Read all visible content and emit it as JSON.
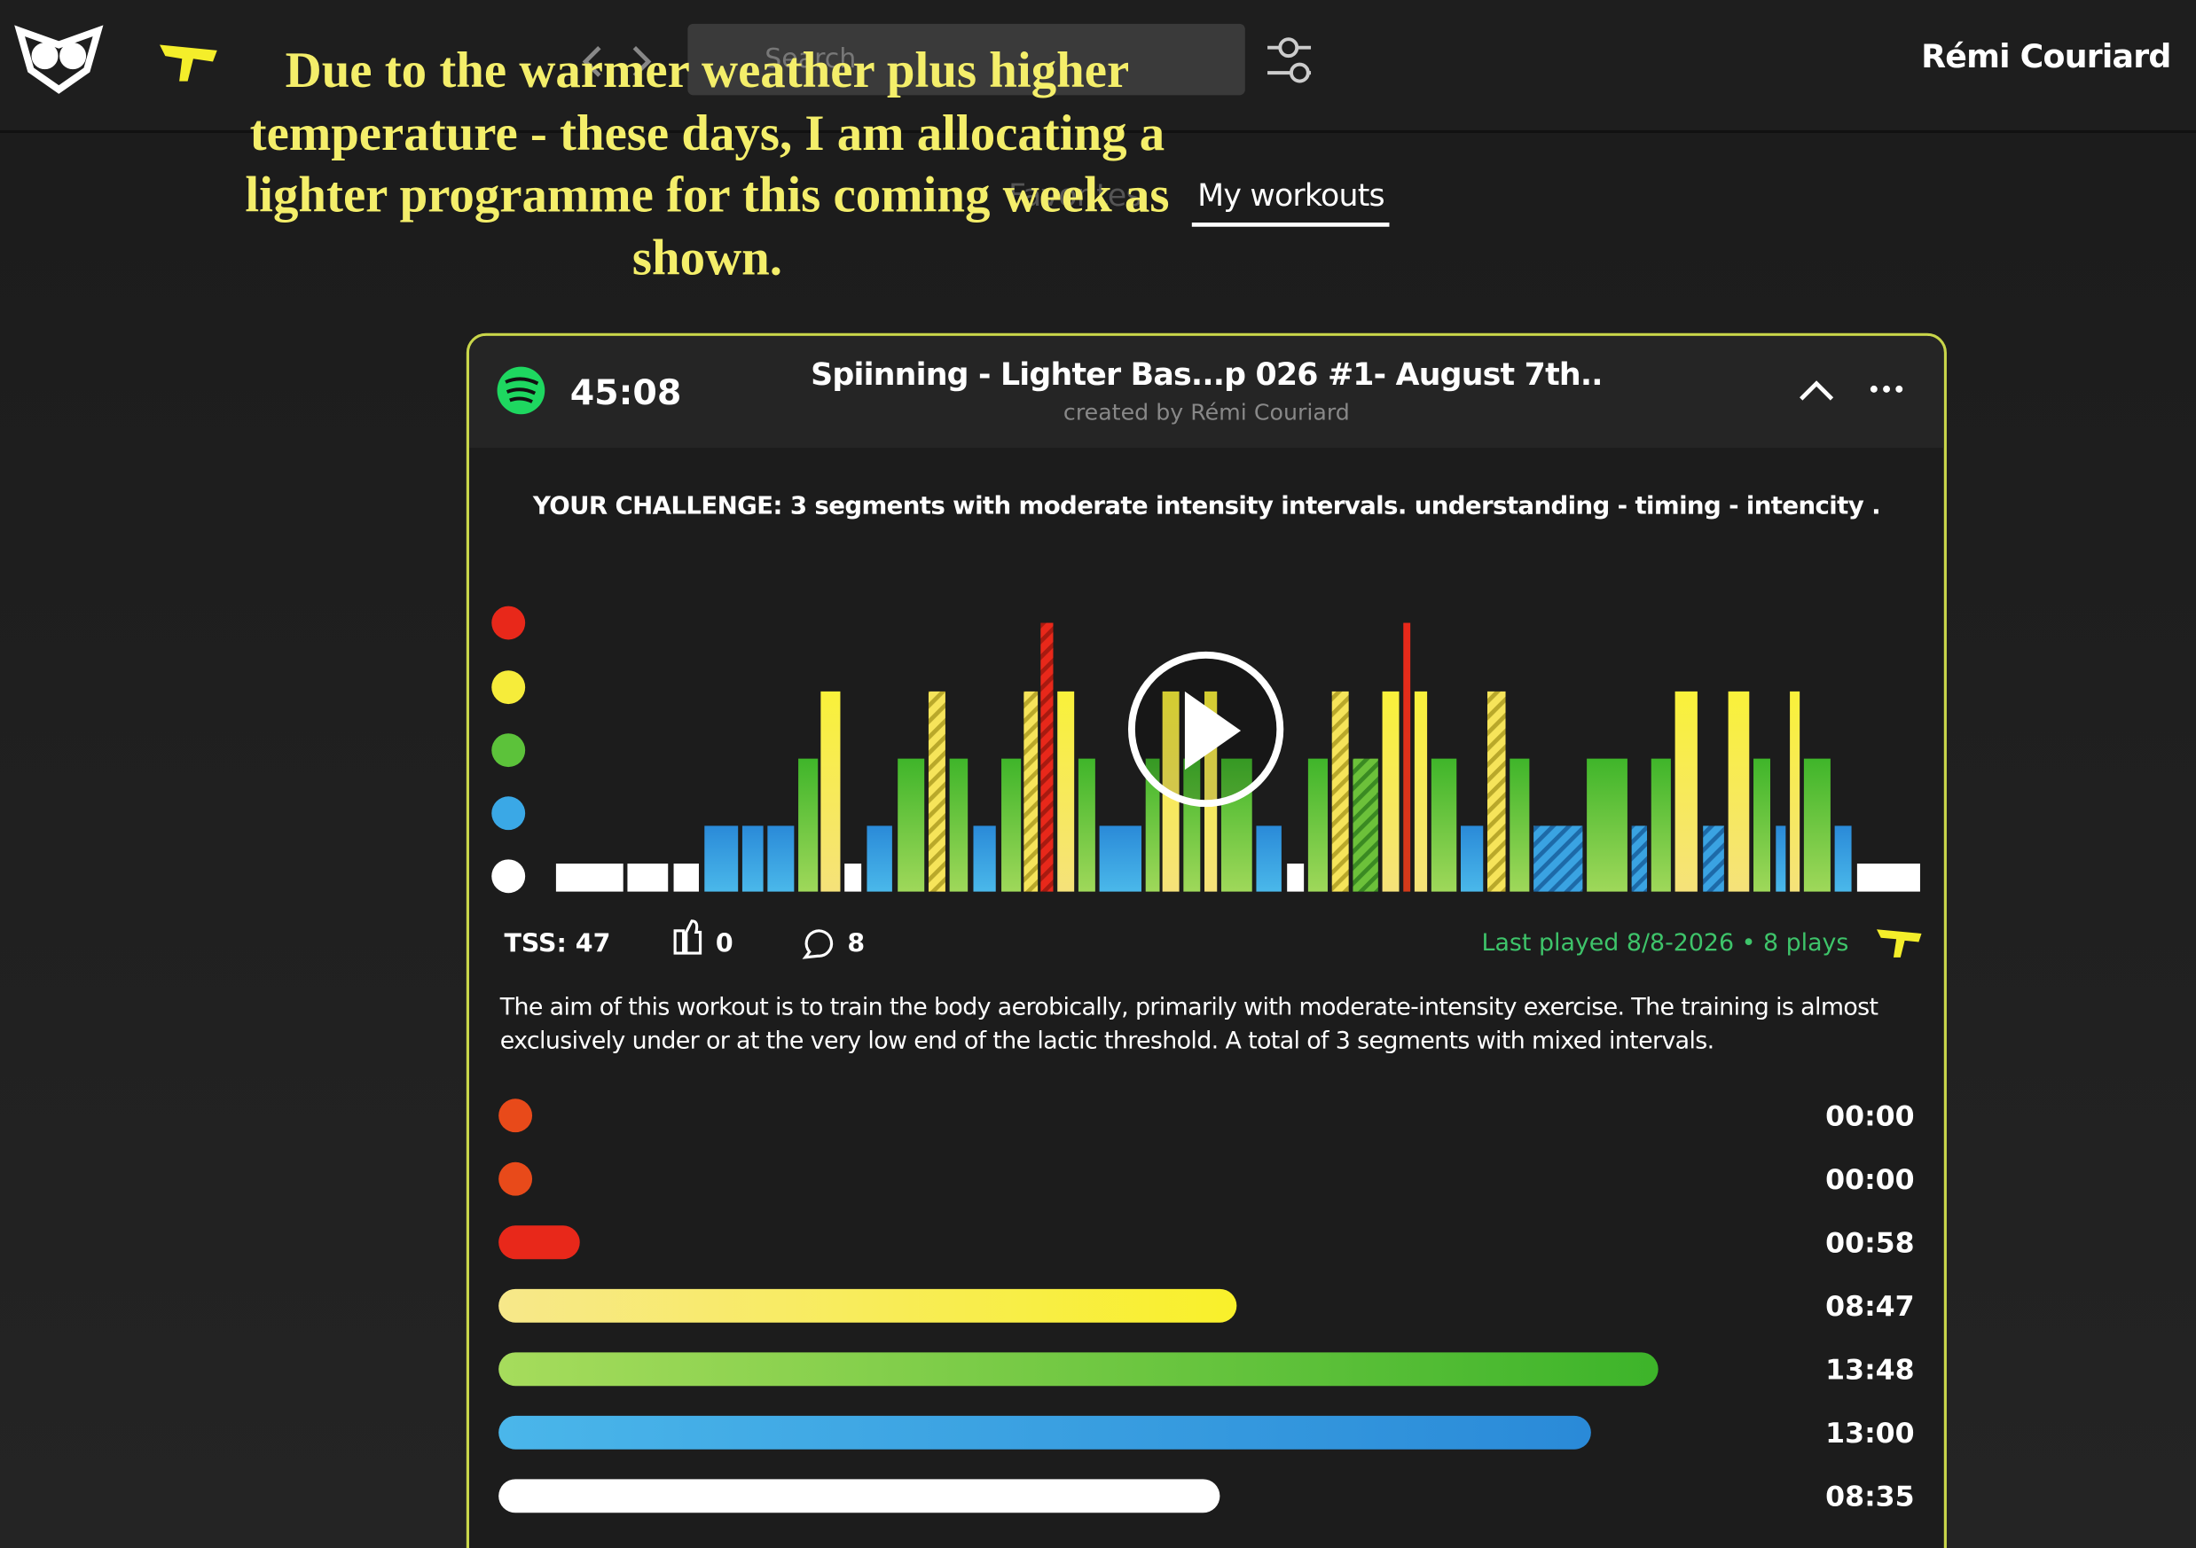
{
  "nav": {
    "search_placeholder": "Search",
    "tabs": [
      "Favorites",
      "My workouts"
    ],
    "user": "Rémi Couriard"
  },
  "annotation": "Due to the warmer weather plus higher temperature  - these days, I am allocating a lighter programme for this coming week as shown.",
  "workout": {
    "duration": "45:08",
    "title": "Spiinning - Lighter Bas...p 026 #1- August 7th..",
    "creator": "created by Rémi Couriard",
    "challenge": "YOUR CHALLENGE:  3 segments with moderate intensity intervals. understanding - timing - intencity .",
    "tss": "TSS: 47",
    "likes": 0,
    "comments": 8,
    "last_played": "Last played 8/8-2026 • 8 plays",
    "description": "The aim of this workout is to train the body aerobically, primarily with moderate-intensity exercise. The training is almost exclusively under or at the very low end of the lactic threshold. A total of 3 segments with mixed intervals.",
    "zone_times": [
      "00:00",
      "00:00",
      "00:58",
      "08:47",
      "13:48",
      "13:00",
      "08:35"
    ]
  }
}
